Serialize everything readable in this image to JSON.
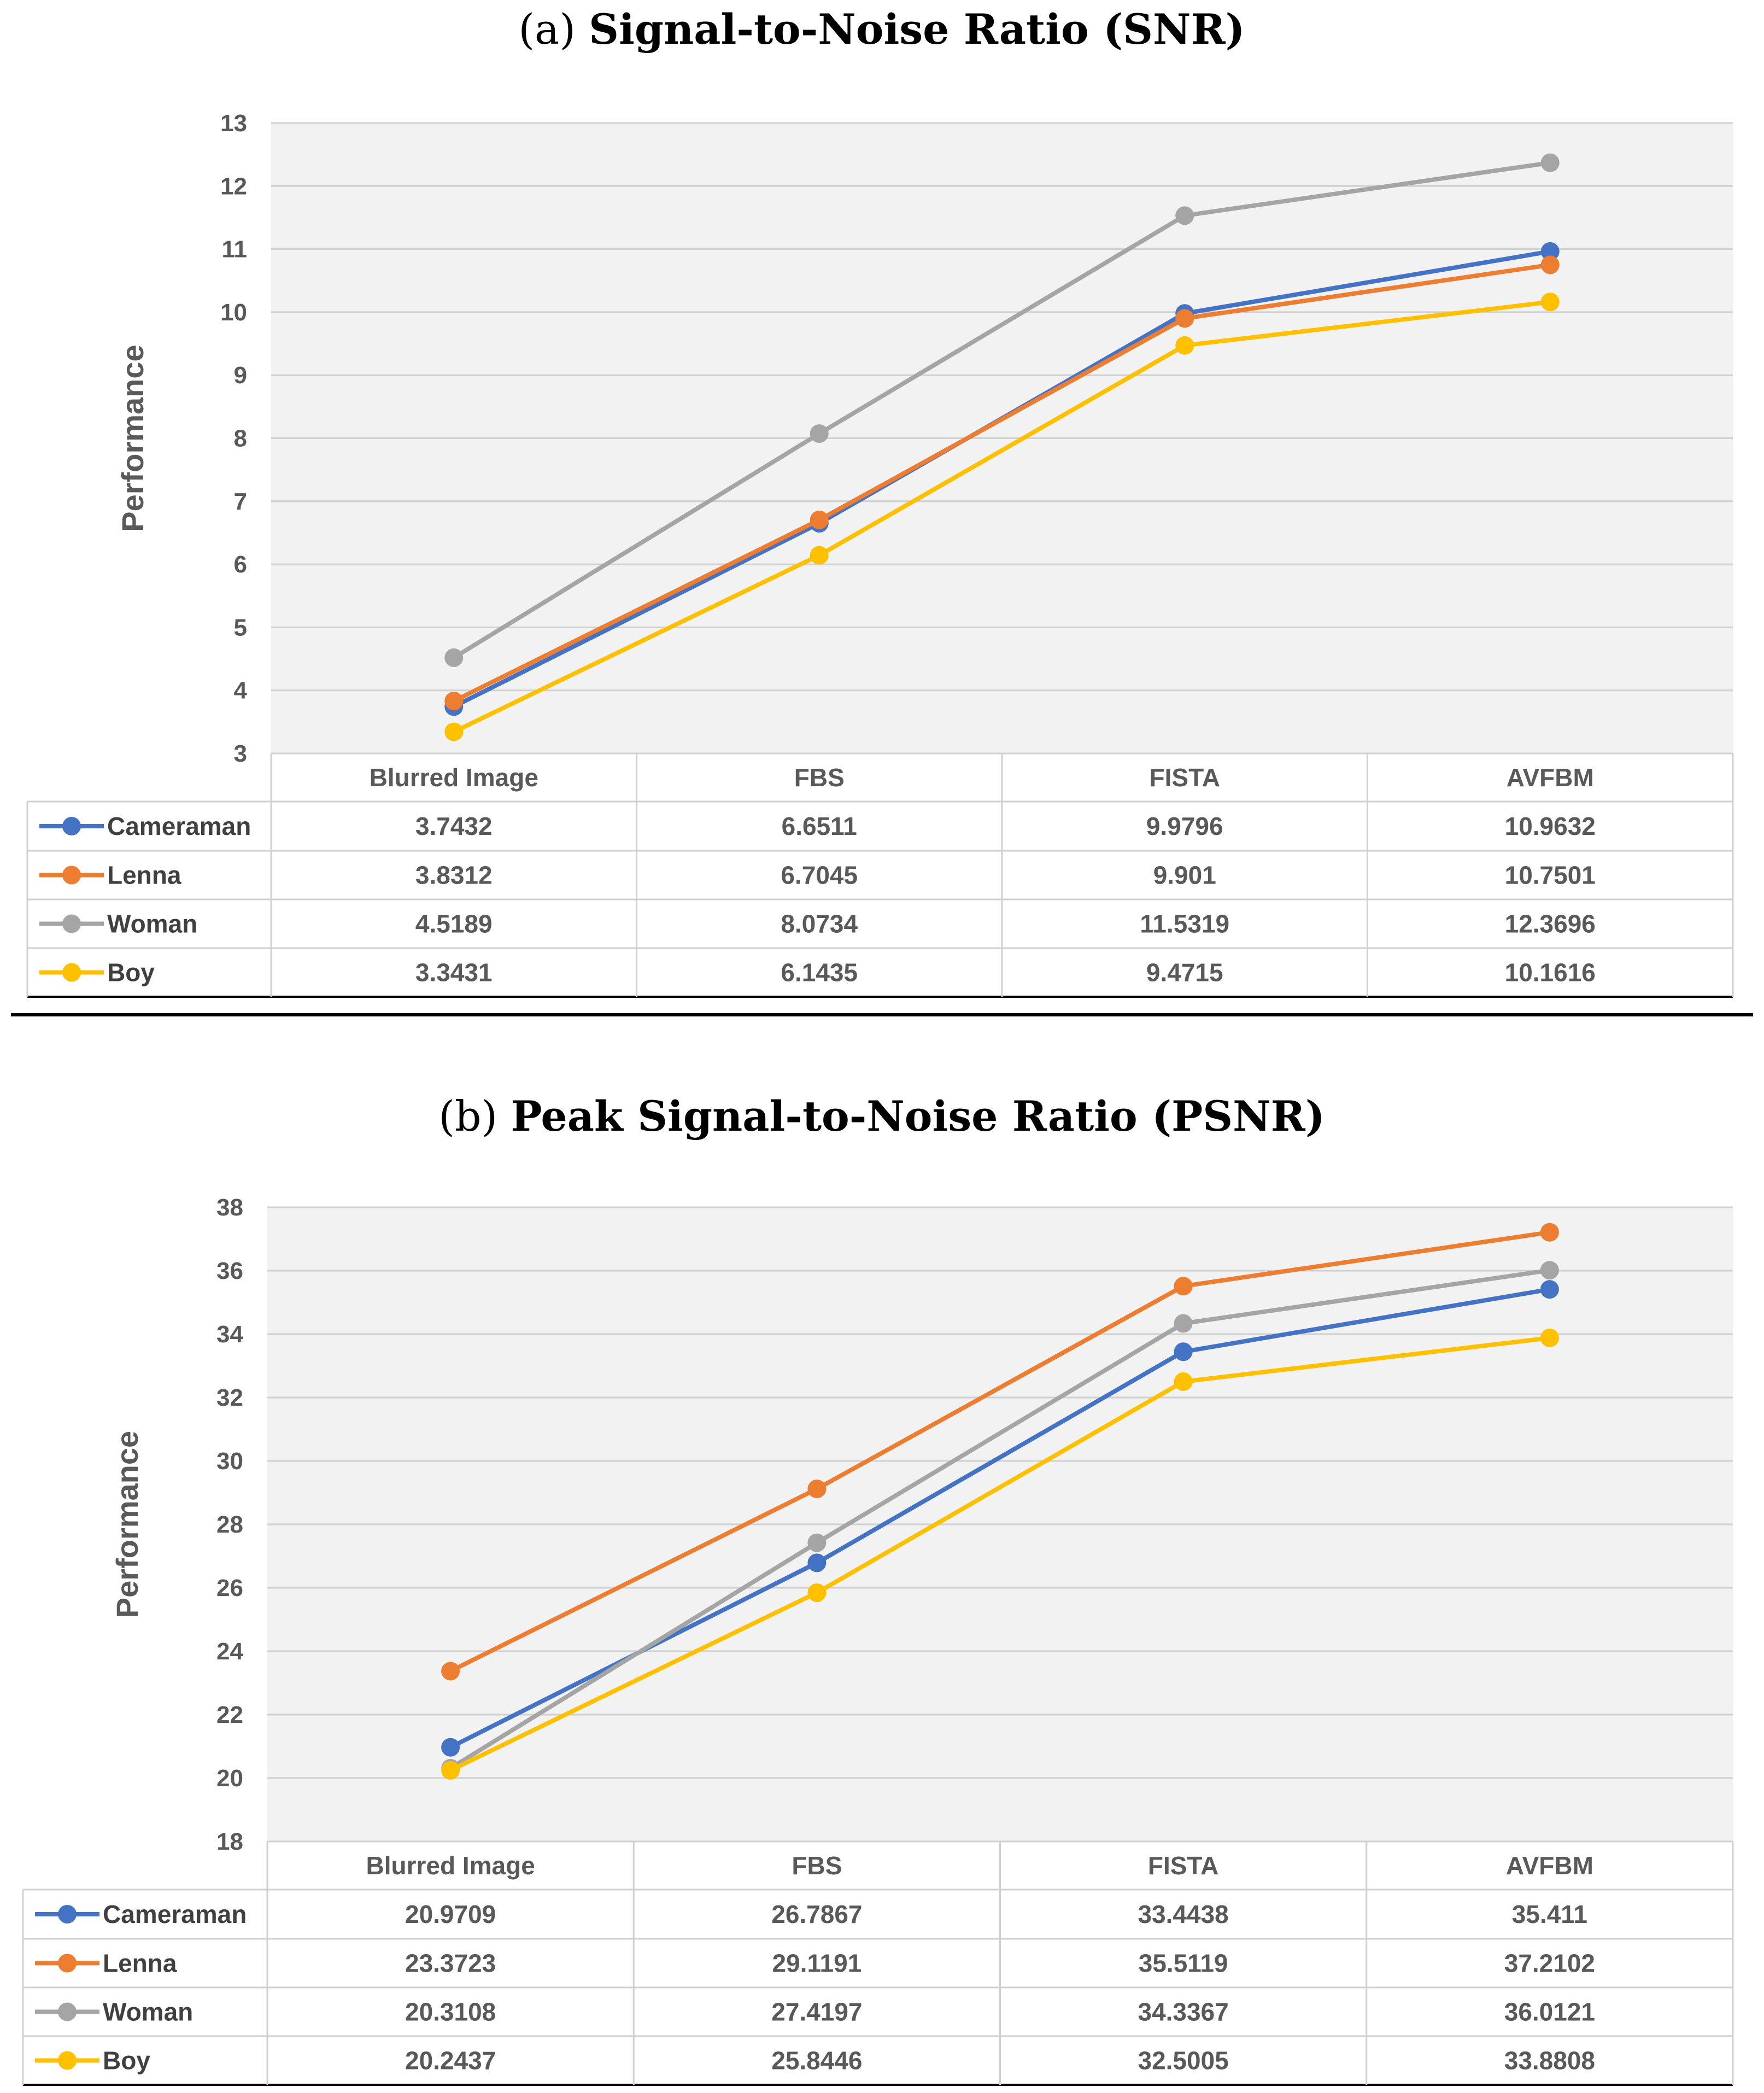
{
  "chart_data": [
    {
      "type": "line",
      "title_prefix": "(a)",
      "title": "Signal-to-Noise Ratio (SNR)",
      "xlabel": "",
      "ylabel": "Performance",
      "ylim": [
        3,
        13
      ],
      "yticks": [
        3,
        4,
        5,
        6,
        7,
        8,
        9,
        10,
        11,
        12,
        13
      ],
      "grid": true,
      "legend": "data-table-left",
      "categories": [
        "Blurred Image",
        "FBS",
        "FISTA",
        "AVFBM"
      ],
      "series": [
        {
          "name": "Cameraman",
          "color": "#4472C4",
          "values": [
            3.7432,
            6.6511,
            9.9796,
            10.9632
          ],
          "labels": [
            "3.7432",
            "6.6511",
            "9.9796",
            "10.9632"
          ]
        },
        {
          "name": "Lenna",
          "color": "#ED7D31",
          "values": [
            3.8312,
            6.7045,
            9.901,
            10.7501
          ],
          "labels": [
            "3.8312",
            "6.7045",
            "9.901",
            "10.7501"
          ]
        },
        {
          "name": "Woman",
          "color": "#A5A5A5",
          "values": [
            4.5189,
            8.0734,
            11.5319,
            12.3696
          ],
          "labels": [
            "4.5189",
            "8.0734",
            "11.5319",
            "12.3696"
          ]
        },
        {
          "name": "Boy",
          "color": "#FFC000",
          "values": [
            3.3431,
            6.1435,
            9.4715,
            10.1616
          ],
          "labels": [
            "3.3431",
            "6.1435",
            "9.4715",
            "10.1616"
          ]
        }
      ]
    },
    {
      "type": "line",
      "title_prefix": "(b)",
      "title": "Peak Signal-to-Noise Ratio (PSNR)",
      "xlabel": "",
      "ylabel": "Performance",
      "ylim": [
        18,
        38
      ],
      "yticks": [
        18,
        20,
        22,
        24,
        26,
        28,
        30,
        32,
        34,
        36,
        38
      ],
      "grid": true,
      "legend": "data-table-left",
      "categories": [
        "Blurred Image",
        "FBS",
        "FISTA",
        "AVFBM"
      ],
      "series": [
        {
          "name": "Cameraman",
          "color": "#4472C4",
          "values": [
            20.9709,
            26.7867,
            33.4438,
            35.411
          ],
          "labels": [
            "20.9709",
            "26.7867",
            "33.4438",
            "35.411"
          ]
        },
        {
          "name": "Lenna",
          "color": "#ED7D31",
          "values": [
            23.3723,
            29.1191,
            35.5119,
            37.2102
          ],
          "labels": [
            "23.3723",
            "29.1191",
            "35.5119",
            "37.2102"
          ]
        },
        {
          "name": "Woman",
          "color": "#A5A5A5",
          "values": [
            20.3108,
            27.4197,
            34.3367,
            36.0121
          ],
          "labels": [
            "20.3108",
            "27.4197",
            "34.3367",
            "36.0121"
          ]
        },
        {
          "name": "Boy",
          "color": "#FFC000",
          "values": [
            20.2437,
            25.8446,
            32.5005,
            33.8808
          ],
          "labels": [
            "20.2437",
            "25.8446",
            "32.5005",
            "33.8808"
          ]
        }
      ]
    }
  ]
}
